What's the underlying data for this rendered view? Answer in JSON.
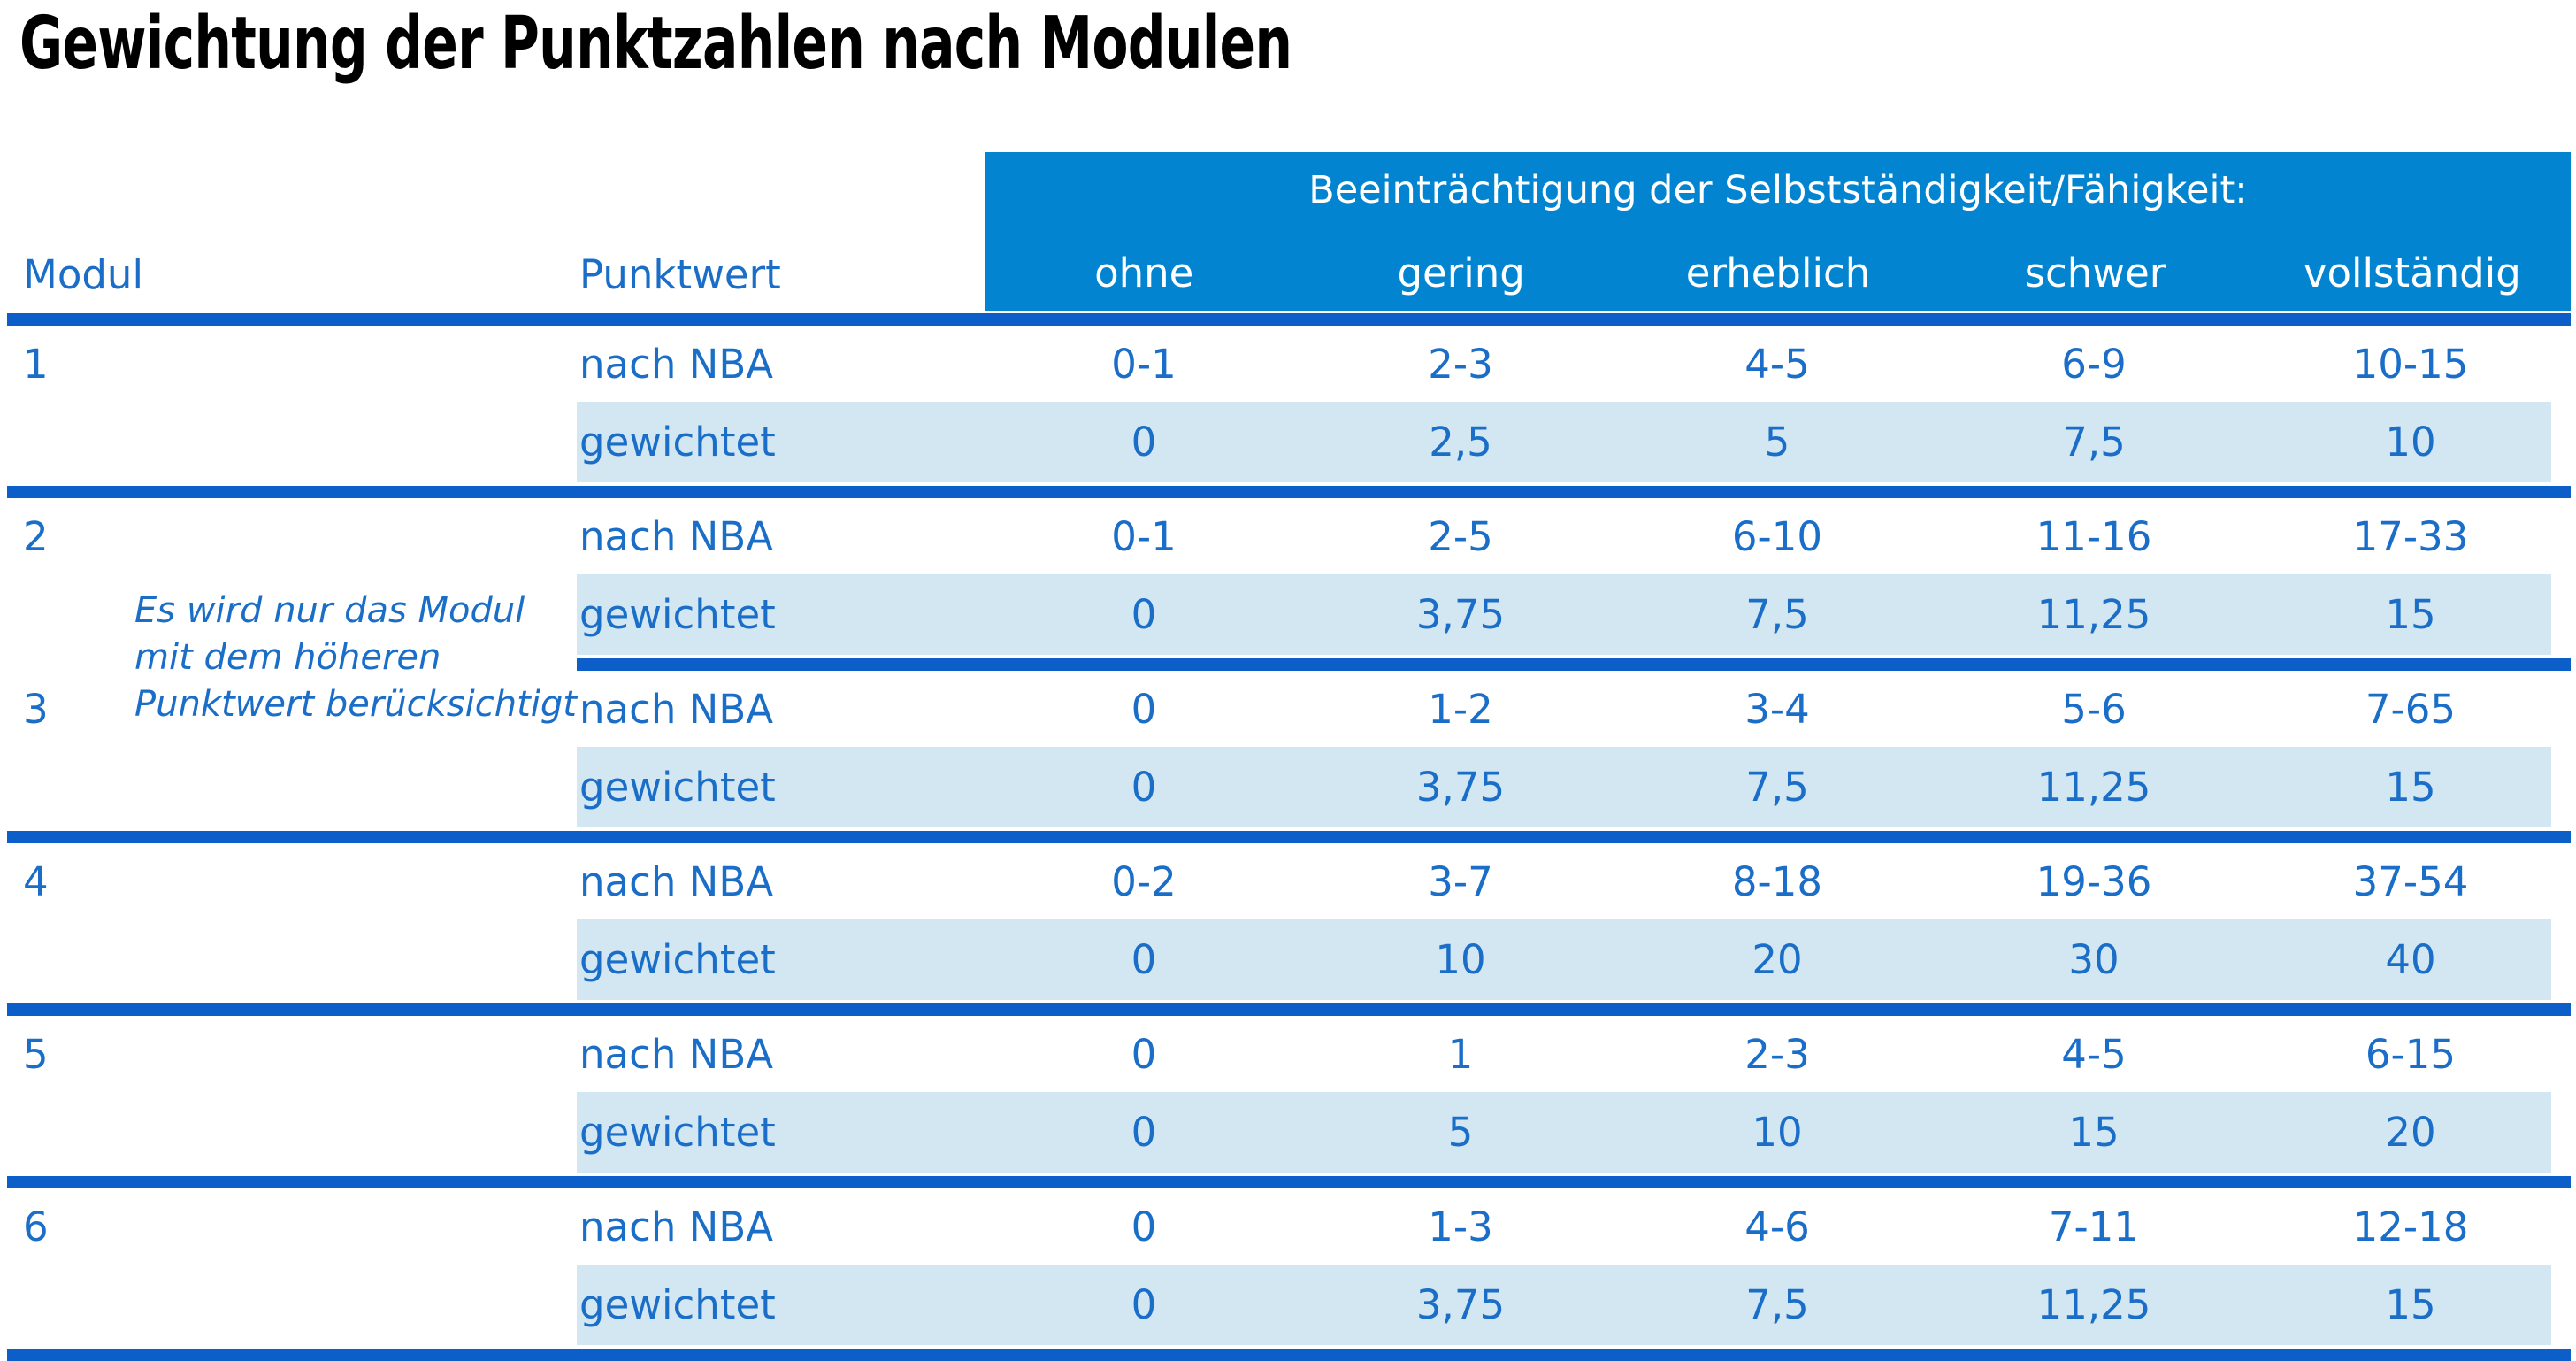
{
  "title": "Gewichtung der Punktzahlen nach Modulen",
  "colors": {
    "header_blue": "#0284d0",
    "rule_blue": "#0c5fc8",
    "text_blue": "#1a6ec8",
    "stripe_blue": "#d3e7f3",
    "header_text": "#ffffff",
    "title_color": "#000000"
  },
  "table": {
    "col_headers": {
      "modul": "Modul",
      "punktwert": "Punktwert"
    },
    "group_header": "Beeinträchtigung der Selbstständigkeit/Fähigkeit:",
    "severity_levels": [
      "ohne",
      "gering",
      "erheblich",
      "schwer",
      "vollständig"
    ],
    "row_labels": {
      "nba": "nach NBA",
      "weighted": "gewichtet"
    },
    "note": {
      "line1": "Es wird nur das Modul",
      "line2": "mit dem höheren",
      "line3": "Punktwert berücksichtigt"
    },
    "modules": [
      {
        "id": "1",
        "nba": [
          "0-1",
          "2-3",
          "4-5",
          "6-9",
          "10-15"
        ],
        "weighted": [
          "0",
          "2,5",
          "5",
          "7,5",
          "10"
        ]
      },
      {
        "id": "2",
        "nba": [
          "0-1",
          "2-5",
          "6-10",
          "11-16",
          "17-33"
        ],
        "weighted": [
          "0",
          "3,75",
          "7,5",
          "11,25",
          "15"
        ]
      },
      {
        "id": "3",
        "nba": [
          "0",
          "1-2",
          "3-4",
          "5-6",
          "7-65"
        ],
        "weighted": [
          "0",
          "3,75",
          "7,5",
          "11,25",
          "15"
        ]
      },
      {
        "id": "4",
        "nba": [
          "0-2",
          "3-7",
          "8-18",
          "19-36",
          "37-54"
        ],
        "weighted": [
          "0",
          "10",
          "20",
          "30",
          "40"
        ]
      },
      {
        "id": "5",
        "nba": [
          "0",
          "1",
          "2-3",
          "4-5",
          "6-15"
        ],
        "weighted": [
          "0",
          "5",
          "10",
          "15",
          "20"
        ]
      },
      {
        "id": "6",
        "nba": [
          "0",
          "1-3",
          "4-6",
          "7-11",
          "12-18"
        ],
        "weighted": [
          "0",
          "3,75",
          "7,5",
          "11,25",
          "15"
        ]
      }
    ]
  }
}
